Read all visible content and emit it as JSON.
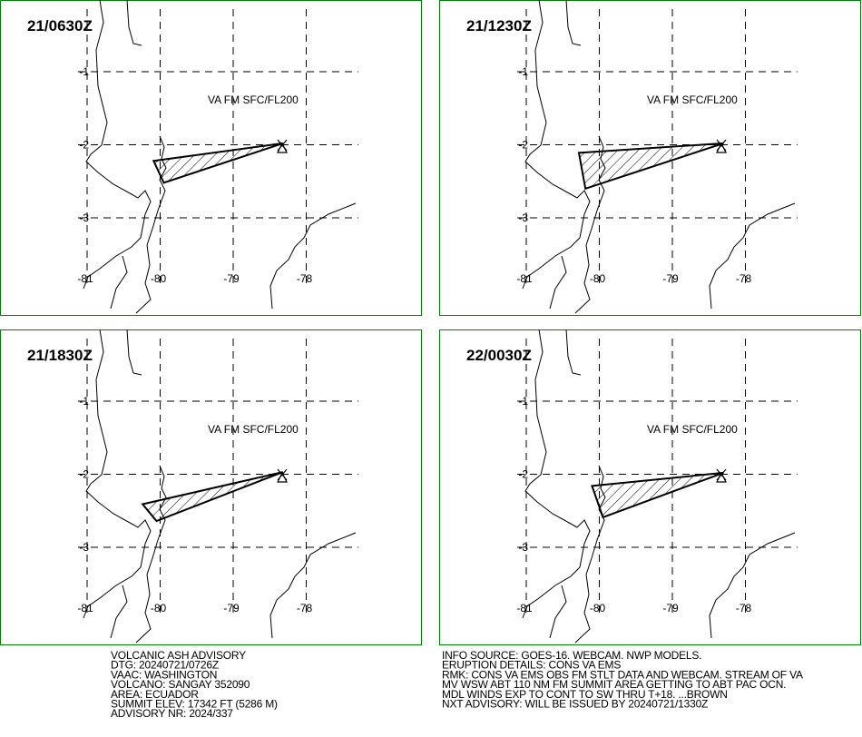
{
  "panels": [
    {
      "valid_time": "21/0630Z",
      "label": "VA FM SFC/FL200",
      "polygon": {
        "lon": [
          -80.09,
          -78.32,
          -79.95
        ],
        "lat": [
          -2.22,
          -1.98,
          -2.52
        ]
      }
    },
    {
      "valid_time": "21/1230Z",
      "label": "VA FM SFC/FL200",
      "polygon": {
        "lon": [
          -80.28,
          -78.3,
          -80.19
        ],
        "lat": [
          -2.11,
          -1.98,
          -2.6
        ]
      }
    },
    {
      "valid_time": "21/1830Z",
      "label": "VA FM SFC/FL200",
      "polygon": {
        "lon": [
          -80.24,
          -78.32,
          -80.05
        ],
        "lat": [
          -2.41,
          -1.97,
          -2.64
        ]
      }
    },
    {
      "valid_time": "22/0030Z",
      "label": "VA FM SFC/FL200",
      "polygon": {
        "lon": [
          -80.1,
          -78.3,
          -79.95
        ],
        "lat": [
          -2.16,
          -1.98,
          -2.59
        ]
      }
    }
  ],
  "lon_ticks": [
    -81,
    -80,
    -79,
    -78
  ],
  "lat_ticks": [
    -1,
    -2,
    -3
  ],
  "advisory_left": [
    "VOLCANIC ASH ADVISORY",
    "DTG: 20240721/0726Z",
    "VAAC: WASHINGTON",
    "VOLCANO: SANGAY 352090",
    "AREA: ECUADOR",
    "SUMMIT ELEV: 17342 FT (5286 M)",
    "ADVISORY NR: 2024/337"
  ],
  "advisory_right": [
    "INFO SOURCE: GOES-16. WEBCAM. NWP MODELS.",
    "ERUPTION DETAILS: CONS VA EMS",
    "RMK: CONS VA EMS OBS FM STLT DATA AND WEBCAM. STREAM OF VA",
    "MV WSW ABT 110 NM FM SUMMIT AREA GETTING TO ABT PAC OCN.",
    "MDL WINDS EXP TO CONT TO SW THRU T+18. ...BROWN",
    "NXT ADVISORY: WILL BE ISSUED BY 20240721/1330Z"
  ]
}
